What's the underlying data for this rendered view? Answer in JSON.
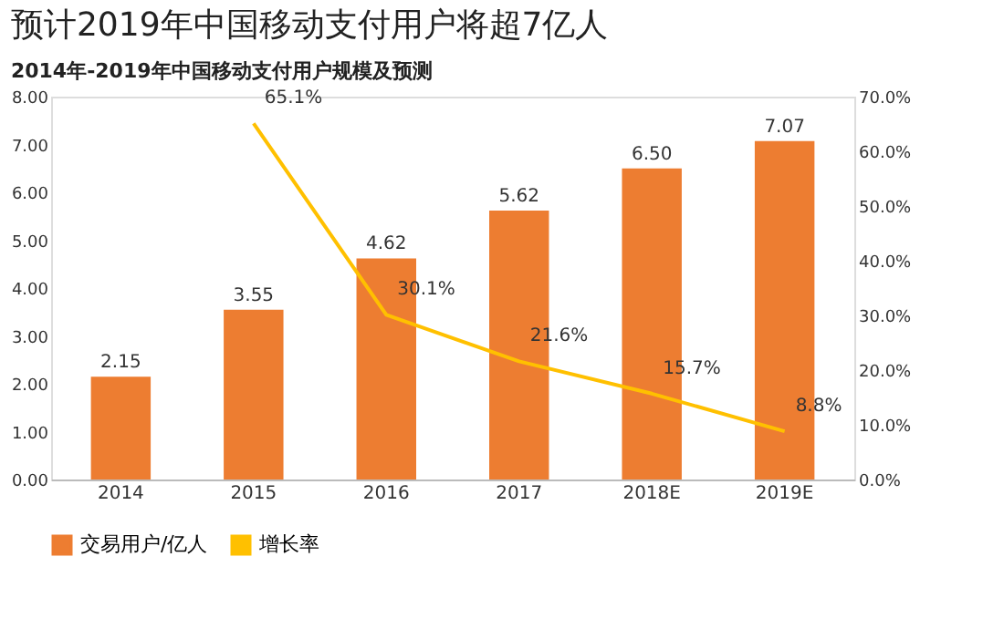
{
  "chart_data": {
    "type": "bar",
    "title": "预计2019年中国移动支付用户将超7亿人",
    "subtitle": "2014年-2019年中国移动支付用户规模及预测",
    "categories": [
      "2014",
      "2015",
      "2016",
      "2017",
      "2018E",
      "2019E"
    ],
    "series": [
      {
        "name": "交易用户/亿人",
        "color": "#ed7d31",
        "values": [
          2.15,
          3.55,
          4.62,
          5.62,
          6.5,
          7.07
        ],
        "value_labels": [
          "2.15",
          "3.55",
          "4.62",
          "5.62",
          "6.50",
          "7.07"
        ]
      },
      {
        "name": "增长率",
        "type": "line",
        "axis": "y2",
        "color": "#ffc000",
        "values": [
          null,
          65.1,
          30.1,
          21.6,
          15.7,
          8.8
        ],
        "value_labels": [
          null,
          "65.1%",
          "30.1%",
          "21.6%",
          "15.7%",
          "8.8%"
        ]
      }
    ],
    "ylim": [
      0,
      8
    ],
    "yticks": [
      {
        "value": 0,
        "label": "0.00"
      },
      {
        "value": 1,
        "label": "1.00"
      },
      {
        "value": 2,
        "label": "2.00"
      },
      {
        "value": 3,
        "label": "3.00"
      },
      {
        "value": 4,
        "label": "4.00"
      },
      {
        "value": 5,
        "label": "5.00"
      },
      {
        "value": 6,
        "label": "6.00"
      },
      {
        "value": 7,
        "label": "7.00"
      },
      {
        "value": 8,
        "label": "8.00"
      }
    ],
    "y2lim": [
      0,
      70
    ],
    "y2ticks": [
      {
        "value": 0,
        "label": "0.0%"
      },
      {
        "value": 10,
        "label": "10.0%"
      },
      {
        "value": 20,
        "label": "20.0%"
      },
      {
        "value": 30,
        "label": "30.0%"
      },
      {
        "value": 40,
        "label": "40.0%"
      },
      {
        "value": 50,
        "label": "50.0%"
      },
      {
        "value": 60,
        "label": "60.0%"
      },
      {
        "value": 70,
        "label": "70.0%"
      }
    ],
    "legend": "bottom",
    "grid": false,
    "marker": "none"
  }
}
